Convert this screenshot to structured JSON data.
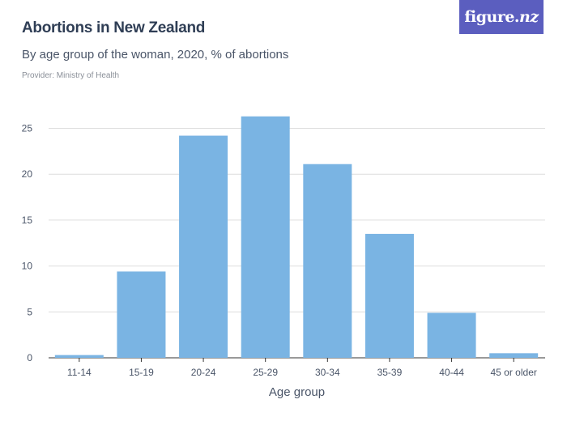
{
  "header": {
    "title": "Abortions in New Zealand",
    "subtitle": "By age group of the woman, 2020, % of abortions",
    "provider": "Provider: Ministry of Health",
    "logo_main": "figure.",
    "logo_suffix": "nz"
  },
  "colors": {
    "bar": "#7ab4e3",
    "grid": "#dddddd",
    "axis": "#4a5568",
    "logo_bg": "#5b5ebf"
  },
  "chart_data": {
    "type": "bar",
    "categories": [
      "11-14",
      "15-19",
      "20-24",
      "25-29",
      "30-34",
      "35-39",
      "40-44",
      "45 or older"
    ],
    "values": [
      0.3,
      9.4,
      24.2,
      26.3,
      21.1,
      13.5,
      4.9,
      0.5
    ],
    "xlabel": "Age group",
    "ylabel": "",
    "ylim": [
      0,
      25
    ],
    "yticks": [
      0,
      5,
      10,
      15,
      20,
      25
    ],
    "grid": true
  }
}
